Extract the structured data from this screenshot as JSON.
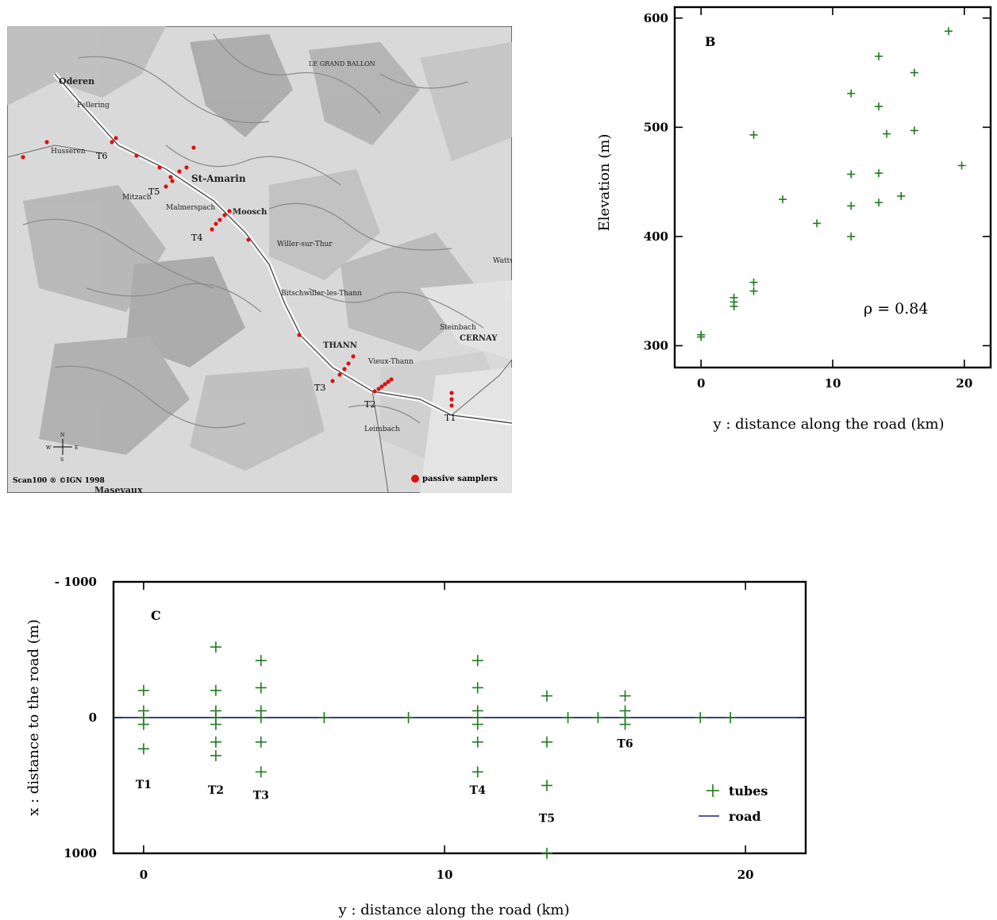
{
  "map": {
    "towns": [
      "Oderen",
      "Fellering",
      "Husseren",
      "St-Amarin",
      "Moosch",
      "Mitzach",
      "Malmerspach",
      "Willer-sur-Thur",
      "Bitschwiller-les-Thann",
      "THANN",
      "Vieux-Thann",
      "Steinbach",
      "CERNAY",
      "Leimbach",
      "Masevaux",
      "Wattw",
      "LE GRAND BALLON"
    ],
    "transect_labels": [
      "T6",
      "T5",
      "T4",
      "T3",
      "T2",
      "T1"
    ],
    "copyright": "Scan100 ® ©IGN 1998",
    "legend_label": "passive samplers",
    "compass": {
      "n": "N",
      "w": "W",
      "e": "E",
      "s": "S"
    },
    "marker_color": "#dd1111"
  },
  "chart_b": {
    "chart_data": {
      "type": "scatter",
      "panel_letter": "B",
      "xlabel": "y : distance along the road (km)",
      "ylabel": "Elevation (m)",
      "xlim": [
        -2,
        22
      ],
      "ylim": [
        280,
        610
      ],
      "xticks": [
        0,
        10,
        20
      ],
      "yticks": [
        300,
        400,
        500,
        600
      ],
      "annotation": "ρ = 0.84",
      "marker": "+",
      "color": "#1f7a1f",
      "points": [
        [
          0,
          308
        ],
        [
          0,
          310
        ],
        [
          2.5,
          336
        ],
        [
          2.5,
          340
        ],
        [
          2.5,
          344
        ],
        [
          4,
          350
        ],
        [
          4,
          358
        ],
        [
          4,
          493
        ],
        [
          6.2,
          434
        ],
        [
          8.8,
          412
        ],
        [
          11.4,
          400
        ],
        [
          11.4,
          428
        ],
        [
          11.4,
          457
        ],
        [
          11.4,
          531
        ],
        [
          13.5,
          431
        ],
        [
          13.5,
          458
        ],
        [
          13.5,
          519
        ],
        [
          13.5,
          565
        ],
        [
          14.1,
          494
        ],
        [
          15.2,
          437
        ],
        [
          16.2,
          497
        ],
        [
          16.2,
          550
        ],
        [
          18.8,
          588
        ],
        [
          19.8,
          465
        ]
      ]
    }
  },
  "chart_c": {
    "chart_data": {
      "type": "scatter",
      "panel_letter": "C",
      "xlabel": "y : distance along the road (km)",
      "ylabel": "x : distance to the road (m)",
      "xlim": [
        -1,
        22
      ],
      "ylim": [
        -1000,
        1000
      ],
      "y_inverted": true,
      "xticks": [
        0,
        10,
        20
      ],
      "yticks": [
        {
          "value": -1000,
          "label": "- 1000"
        },
        {
          "value": 0,
          "label": "0"
        },
        {
          "value": 1000,
          "label": "1000"
        }
      ],
      "series": [
        {
          "name": "tubes",
          "marker": "+",
          "color": "#1f7a1f",
          "points": [
            [
              0,
              -200
            ],
            [
              0,
              -50
            ],
            [
              0,
              0
            ],
            [
              0,
              50
            ],
            [
              0,
              230
            ],
            [
              2.4,
              -520
            ],
            [
              2.4,
              -200
            ],
            [
              2.4,
              -50
            ],
            [
              2.4,
              0
            ],
            [
              2.4,
              50
            ],
            [
              2.4,
              180
            ],
            [
              2.4,
              280
            ],
            [
              3.9,
              -420
            ],
            [
              3.9,
              -220
            ],
            [
              3.9,
              -50
            ],
            [
              3.9,
              0
            ],
            [
              3.9,
              180
            ],
            [
              3.9,
              400
            ],
            [
              6,
              0
            ],
            [
              8.8,
              0
            ],
            [
              11.1,
              -420
            ],
            [
              11.1,
              -220
            ],
            [
              11.1,
              -50
            ],
            [
              11.1,
              0
            ],
            [
              11.1,
              50
            ],
            [
              11.1,
              180
            ],
            [
              11.1,
              400
            ],
            [
              13.4,
              -160
            ],
            [
              13.4,
              180
            ],
            [
              13.4,
              500
            ],
            [
              13.4,
              1000
            ],
            [
              14.1,
              0
            ],
            [
              15.1,
              0
            ],
            [
              16,
              -160
            ],
            [
              16,
              -50
            ],
            [
              16,
              0
            ],
            [
              16,
              50
            ],
            [
              18.5,
              0
            ],
            [
              19.5,
              0
            ]
          ]
        },
        {
          "name": "road",
          "type": "line",
          "color": "#1a237e",
          "points": [
            [
              -1,
              0
            ],
            [
              22,
              0
            ]
          ]
        }
      ],
      "annotations": [
        {
          "text": "T1",
          "x": 0,
          "y": 520
        },
        {
          "text": "T2",
          "x": 2.4,
          "y": 560
        },
        {
          "text": "T3",
          "x": 3.9,
          "y": 600
        },
        {
          "text": "T4",
          "x": 11.1,
          "y": 560
        },
        {
          "text": "T5",
          "x": 13.4,
          "y": 770
        },
        {
          "text": "T6",
          "x": 16,
          "y": 220
        }
      ],
      "legend": {
        "placement": "bottom-right",
        "entries": [
          "tubes",
          "road"
        ]
      }
    }
  }
}
